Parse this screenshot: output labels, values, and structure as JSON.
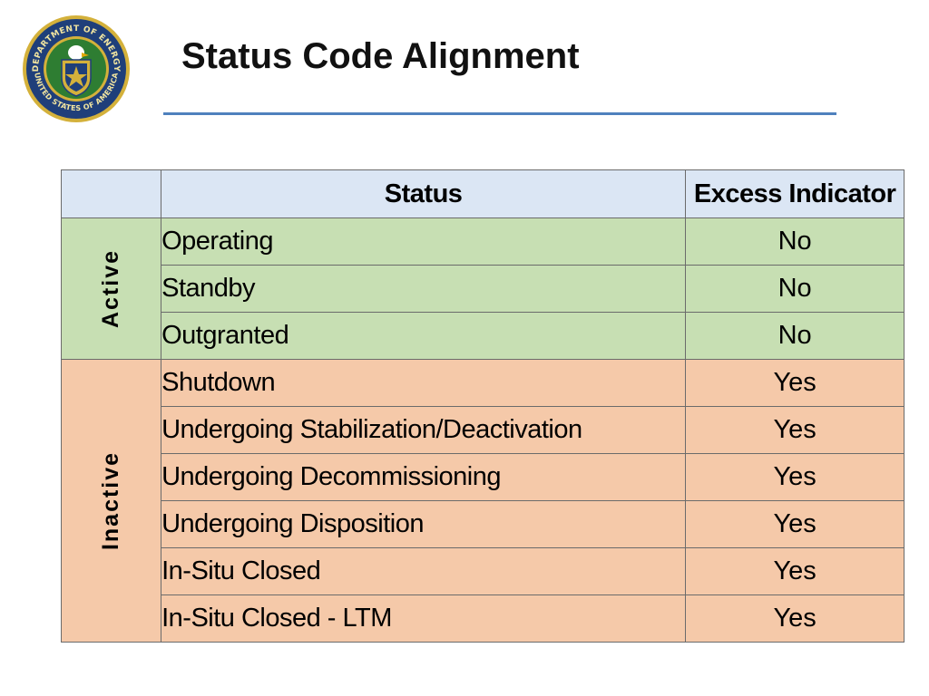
{
  "slide": {
    "title": "Status Code Alignment",
    "seal_text_top": "DEPARTMENT OF ENERGY",
    "seal_text_bottom": "UNITED STATES OF AMERICA"
  },
  "table": {
    "headers": {
      "group": "",
      "status": "Status",
      "excess": "Excess Indicator"
    },
    "groups": [
      {
        "label": "Active",
        "rows": [
          {
            "status": "Operating",
            "excess": "No"
          },
          {
            "status": "Standby",
            "excess": "No"
          },
          {
            "status": "Outgranted",
            "excess": "No"
          }
        ]
      },
      {
        "label": "Inactive",
        "rows": [
          {
            "status": "Shutdown",
            "excess": "Yes"
          },
          {
            "status": "Undergoing Stabilization/Deactivation",
            "excess": "Yes"
          },
          {
            "status": "Undergoing Decommissioning",
            "excess": "Yes"
          },
          {
            "status": "Undergoing Disposition",
            "excess": "Yes"
          },
          {
            "status": "In-Situ Closed",
            "excess": "Yes"
          },
          {
            "status": "In-Situ Closed - LTM",
            "excess": "Yes"
          }
        ]
      }
    ]
  },
  "colors": {
    "header_bg": "#dbe6f4",
    "active_bg": "#c7dfb3",
    "inactive_bg": "#f5c9a9",
    "title_rule": "#4f81bd",
    "seal_blue": "#1f3f7a",
    "seal_gold": "#d4b13b",
    "seal_green": "#2e7d32"
  }
}
